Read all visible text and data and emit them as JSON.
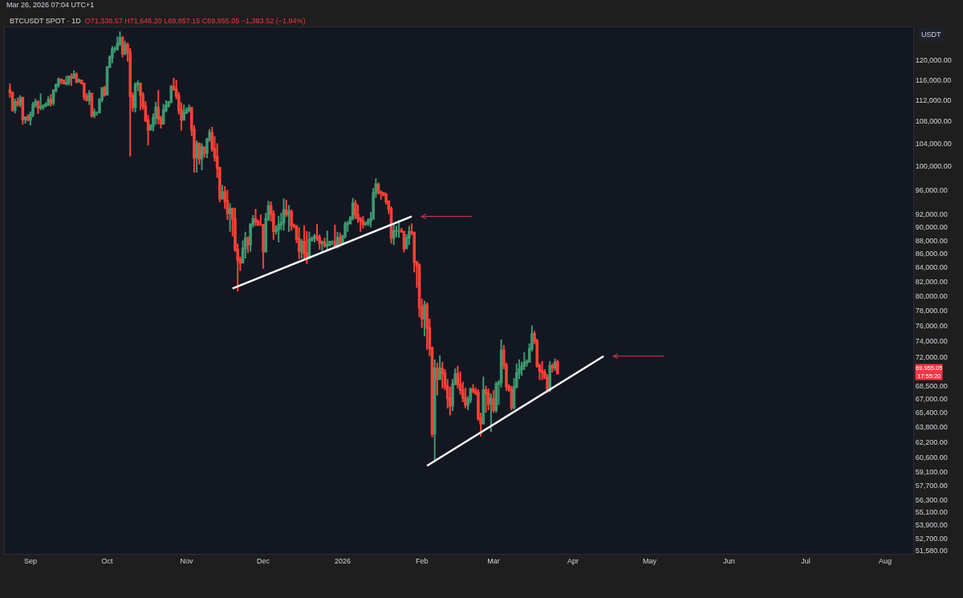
{
  "chart_data": {
    "type": "candlestick",
    "title": "BTCUSDT SPOT · 1D",
    "subtitle": "O71,338.57 H71,646.20 L69,857.15 C69,955.05 −1,383.52 (−1.94%)",
    "ylabel": "USDT",
    "annotations": [
      "Mar 26, 2026 07:04 UTC+1",
      "69,955.05 17:55:20"
    ],
    "log": "y",
    "grid": false,
    "xlim": [
      "2025-08-22",
      "2026-08-12"
    ],
    "xticks": [
      {
        "value": "2025-09-01",
        "label": "Sep"
      },
      {
        "value": "2025-10-01",
        "label": "Oct"
      },
      {
        "value": "2025-11-01",
        "label": "Nov"
      },
      {
        "value": "2025-12-01",
        "label": "Dec"
      },
      {
        "value": "2026-01-01",
        "label": "2026"
      },
      {
        "value": "2026-02-01",
        "label": "Feb"
      },
      {
        "value": "2026-03-01",
        "label": "Mar"
      },
      {
        "value": "2026-04-01",
        "label": "Apr"
      },
      {
        "value": "2026-05-01",
        "label": "May"
      },
      {
        "value": "2026-06-01",
        "label": "Jun"
      },
      {
        "value": "2026-07-01",
        "label": "Jul"
      },
      {
        "value": "2026-08-01",
        "label": "Aug"
      }
    ],
    "ylim": [
      51300,
      127000
    ],
    "yticks": [
      {
        "value": 51580,
        "label": "51,580.00"
      },
      {
        "value": 52700,
        "label": "52,700.00"
      },
      {
        "value": 53900,
        "label": "53,900.00"
      },
      {
        "value": 55100,
        "label": "55,100.00"
      },
      {
        "value": 56300,
        "label": "56,300.00"
      },
      {
        "value": 57700,
        "label": "57,700.00"
      },
      {
        "value": 59100,
        "label": "59,100.00"
      },
      {
        "value": 60600,
        "label": "60,600.00"
      },
      {
        "value": 62200,
        "label": "62,200.00"
      },
      {
        "value": 63800,
        "label": "63,800.00"
      },
      {
        "value": 65400,
        "label": "65,400.00"
      },
      {
        "value": 67000,
        "label": "67,000.00"
      },
      {
        "value": 68500,
        "label": "68,500.00"
      },
      {
        "value": 72000,
        "label": "72,000.00"
      },
      {
        "value": 74000,
        "label": "74,000.00"
      },
      {
        "value": 76000,
        "label": "76,000.00"
      },
      {
        "value": 78000,
        "label": "78,000.00"
      },
      {
        "value": 80000,
        "label": "80,000.00"
      },
      {
        "value": 82000,
        "label": "82,000.00"
      },
      {
        "value": 84000,
        "label": "84,000.00"
      },
      {
        "value": 86000,
        "label": "86,000.00"
      },
      {
        "value": 88000,
        "label": "88,000.00"
      },
      {
        "value": 90000,
        "label": "90,000.00"
      },
      {
        "value": 92000,
        "label": "92,000.00"
      },
      {
        "value": 96000,
        "label": "96,000.00"
      },
      {
        "value": 100000,
        "label": "100,000.00"
      },
      {
        "value": 104000,
        "label": "104,000.00"
      },
      {
        "value": 108000,
        "label": "108,000.00"
      },
      {
        "value": 112000,
        "label": "112,000.00"
      },
      {
        "value": 116000,
        "label": "116,000.00"
      },
      {
        "value": 120000,
        "label": "120,000.00"
      }
    ],
    "x": [
      "2025-08-24",
      "2025-08-25",
      "2025-08-26",
      "2025-08-27",
      "2025-08-28",
      "2025-08-29",
      "2025-08-30",
      "2025-08-31",
      "2025-09-01",
      "2025-09-02",
      "2025-09-03",
      "2025-09-04",
      "2025-09-05",
      "2025-09-06",
      "2025-09-07",
      "2025-09-08",
      "2025-09-09",
      "2025-09-10",
      "2025-09-11",
      "2025-09-12",
      "2025-09-13",
      "2025-09-14",
      "2025-09-15",
      "2025-09-16",
      "2025-09-17",
      "2025-09-18",
      "2025-09-19",
      "2025-09-20",
      "2025-09-21",
      "2025-09-22",
      "2025-09-23",
      "2025-09-24",
      "2025-09-25",
      "2025-09-26",
      "2025-09-27",
      "2025-09-28",
      "2025-09-29",
      "2025-09-30",
      "2025-10-01",
      "2025-10-02",
      "2025-10-03",
      "2025-10-04",
      "2025-10-05",
      "2025-10-06",
      "2025-10-07",
      "2025-10-08",
      "2025-10-09",
      "2025-10-10",
      "2025-10-11",
      "2025-10-12",
      "2025-10-13",
      "2025-10-14",
      "2025-10-15",
      "2025-10-16",
      "2025-10-17",
      "2025-10-18",
      "2025-10-19",
      "2025-10-20",
      "2025-10-21",
      "2025-10-22",
      "2025-10-23",
      "2025-10-24",
      "2025-10-25",
      "2025-10-26",
      "2025-10-27",
      "2025-10-28",
      "2025-10-29",
      "2025-10-30",
      "2025-10-31",
      "2025-11-01",
      "2025-11-02",
      "2025-11-03",
      "2025-11-04",
      "2025-11-05",
      "2025-11-06",
      "2025-11-07",
      "2025-11-08",
      "2025-11-09",
      "2025-11-10",
      "2025-11-11",
      "2025-11-12",
      "2025-11-13",
      "2025-11-14",
      "2025-11-15",
      "2025-11-16",
      "2025-11-17",
      "2025-11-18",
      "2025-11-19",
      "2025-11-20",
      "2025-11-21",
      "2025-11-22",
      "2025-11-23",
      "2025-11-24",
      "2025-11-25",
      "2025-11-26",
      "2025-11-27",
      "2025-11-28",
      "2025-11-29",
      "2025-11-30",
      "2025-12-01",
      "2025-12-02",
      "2025-12-03",
      "2025-12-04",
      "2025-12-05",
      "2025-12-06",
      "2025-12-07",
      "2025-12-08",
      "2025-12-09",
      "2025-12-10",
      "2025-12-11",
      "2025-12-12",
      "2025-12-13",
      "2025-12-14",
      "2025-12-15",
      "2025-12-16",
      "2025-12-17",
      "2025-12-18",
      "2025-12-19",
      "2025-12-20",
      "2025-12-21",
      "2025-12-22",
      "2025-12-23",
      "2025-12-24",
      "2025-12-25",
      "2025-12-26",
      "2025-12-27",
      "2025-12-28",
      "2025-12-29",
      "2025-12-30",
      "2025-12-31",
      "2026-01-01",
      "2026-01-02",
      "2026-01-03",
      "2026-01-04",
      "2026-01-05",
      "2026-01-06",
      "2026-01-07",
      "2026-01-08",
      "2026-01-09",
      "2026-01-10",
      "2026-01-11",
      "2026-01-12",
      "2026-01-13",
      "2026-01-14",
      "2026-01-15",
      "2026-01-16",
      "2026-01-17",
      "2026-01-18",
      "2026-01-19",
      "2026-01-20",
      "2026-01-21",
      "2026-01-22",
      "2026-01-23",
      "2026-01-24",
      "2026-01-25",
      "2026-01-26",
      "2026-01-27",
      "2026-01-28",
      "2026-01-29",
      "2026-01-30",
      "2026-01-31",
      "2026-02-01",
      "2026-02-02",
      "2026-02-03",
      "2026-02-04",
      "2026-02-05",
      "2026-02-06",
      "2026-02-07",
      "2026-02-08",
      "2026-02-09",
      "2026-02-10",
      "2026-02-11",
      "2026-02-12",
      "2026-02-13",
      "2026-02-14",
      "2026-02-15",
      "2026-02-16",
      "2026-02-17",
      "2026-02-18",
      "2026-02-19",
      "2026-02-20",
      "2026-02-21",
      "2026-02-22",
      "2026-02-23",
      "2026-02-24",
      "2026-02-25",
      "2026-02-26",
      "2026-02-27",
      "2026-02-28",
      "2026-03-01",
      "2026-03-02",
      "2026-03-03",
      "2026-03-04",
      "2026-03-05",
      "2026-03-06",
      "2026-03-07",
      "2026-03-08",
      "2026-03-09",
      "2026-03-10",
      "2026-03-11",
      "2026-03-12",
      "2026-03-13",
      "2026-03-14",
      "2026-03-15",
      "2026-03-16",
      "2026-03-17",
      "2026-03-18",
      "2026-03-19",
      "2026-03-20",
      "2026-03-21",
      "2026-03-22",
      "2026-03-23",
      "2026-03-24",
      "2026-03-25",
      "2026-03-26"
    ],
    "ohlc": [
      [
        114000,
        115300,
        112500,
        113500
      ],
      [
        113500,
        113700,
        109800,
        110200
      ],
      [
        110200,
        112300,
        109500,
        111700
      ],
      [
        111700,
        112500,
        110800,
        111200
      ],
      [
        111200,
        113000,
        110700,
        112500
      ],
      [
        112500,
        112700,
        107400,
        108400
      ],
      [
        108400,
        108900,
        107600,
        108800
      ],
      [
        108800,
        109300,
        108000,
        108300
      ],
      [
        108300,
        109900,
        107300,
        109300
      ],
      [
        109300,
        111700,
        108800,
        111200
      ],
      [
        111200,
        112300,
        110600,
        111700
      ],
      [
        111700,
        112000,
        109400,
        110600
      ],
      [
        110600,
        113300,
        110100,
        110700
      ],
      [
        110700,
        111200,
        110200,
        111000
      ],
      [
        111000,
        111600,
        110700,
        111200
      ],
      [
        111200,
        112800,
        110900,
        112100
      ],
      [
        112100,
        113200,
        110800,
        111500
      ],
      [
        111500,
        114200,
        111000,
        113900
      ],
      [
        113900,
        115300,
        113500,
        115000
      ],
      [
        115000,
        116500,
        114500,
        116100
      ],
      [
        116100,
        116300,
        115200,
        115900
      ],
      [
        115900,
        116100,
        115100,
        115300
      ],
      [
        115300,
        116800,
        114900,
        115400
      ],
      [
        115400,
        116900,
        114900,
        116700
      ],
      [
        116700,
        117300,
        114800,
        116400
      ],
      [
        116400,
        117900,
        116200,
        117100
      ],
      [
        117100,
        117500,
        115300,
        115700
      ],
      [
        115700,
        116300,
        115400,
        115900
      ],
      [
        115900,
        116000,
        115200,
        115300
      ],
      [
        115300,
        115400,
        112000,
        112700
      ],
      [
        112700,
        113300,
        111800,
        112000
      ],
      [
        112000,
        114000,
        111100,
        113300
      ],
      [
        113300,
        113400,
        108700,
        109100
      ],
      [
        109100,
        110400,
        108600,
        109700
      ],
      [
        109700,
        109800,
        109100,
        109700
      ],
      [
        109700,
        112400,
        109500,
        112200
      ],
      [
        112200,
        114500,
        111600,
        114400
      ],
      [
        114400,
        114800,
        112700,
        113100
      ],
      [
        113100,
        118700,
        113000,
        118600
      ],
      [
        118600,
        121000,
        118400,
        120600
      ],
      [
        120600,
        123000,
        119400,
        122300
      ],
      [
        122300,
        122900,
        121600,
        122400
      ],
      [
        122400,
        125000,
        122000,
        123500
      ],
      [
        123500,
        126100,
        123000,
        124700
      ],
      [
        124700,
        125100,
        120600,
        121400
      ],
      [
        121400,
        124100,
        121100,
        123300
      ],
      [
        123300,
        123700,
        119700,
        121700
      ],
      [
        121700,
        122500,
        101700,
        112800
      ],
      [
        112800,
        113500,
        109800,
        110700
      ],
      [
        110700,
        115500,
        109700,
        115100
      ],
      [
        115100,
        115900,
        113800,
        115300
      ],
      [
        115300,
        115400,
        110100,
        113000
      ],
      [
        113000,
        113600,
        110200,
        110800
      ],
      [
        110800,
        111800,
        107900,
        108200
      ],
      [
        108200,
        109200,
        103600,
        106500
      ],
      [
        106500,
        107500,
        106300,
        107200
      ],
      [
        107200,
        109500,
        106200,
        108700
      ],
      [
        108700,
        111700,
        107400,
        110600
      ],
      [
        110600,
        114000,
        107500,
        108500
      ],
      [
        108500,
        109100,
        106700,
        107600
      ],
      [
        107600,
        111300,
        107400,
        110100
      ],
      [
        110100,
        112000,
        109700,
        111000
      ],
      [
        111000,
        111800,
        110600,
        111700
      ],
      [
        111700,
        115000,
        111400,
        114600
      ],
      [
        114600,
        116400,
        113900,
        114100
      ],
      [
        114100,
        116000,
        112200,
        112900
      ],
      [
        112900,
        113600,
        109300,
        110100
      ],
      [
        110100,
        111600,
        106300,
        108300
      ],
      [
        108300,
        111200,
        108300,
        109600
      ],
      [
        109600,
        110600,
        109400,
        110100
      ],
      [
        110100,
        111200,
        109700,
        110500
      ],
      [
        110500,
        110800,
        105300,
        106500
      ],
      [
        106500,
        107300,
        98900,
        101500
      ],
      [
        101500,
        104500,
        98900,
        103900
      ],
      [
        103900,
        104200,
        100300,
        101300
      ],
      [
        101300,
        104000,
        99300,
        103300
      ],
      [
        103300,
        103400,
        101500,
        102300
      ],
      [
        102300,
        105000,
        101400,
        104700
      ],
      [
        104700,
        106600,
        104300,
        105900
      ],
      [
        105900,
        107000,
        102500,
        103000
      ],
      [
        103000,
        105300,
        100800,
        101600
      ],
      [
        101600,
        104000,
        98000,
        99700
      ],
      [
        99700,
        99900,
        94000,
        94600
      ],
      [
        94600,
        96800,
        94400,
        95600
      ],
      [
        95600,
        96600,
        92900,
        94200
      ],
      [
        94200,
        96000,
        91200,
        92200
      ],
      [
        92200,
        93800,
        89300,
        92900
      ],
      [
        92900,
        93100,
        88600,
        91300
      ],
      [
        91300,
        93100,
        86300,
        86600
      ],
      [
        86600,
        87500,
        80600,
        85100
      ],
      [
        85100,
        85600,
        83500,
        84700
      ],
      [
        84700,
        88000,
        84700,
        86800
      ],
      [
        86800,
        89300,
        85300,
        88300
      ],
      [
        88300,
        88600,
        86100,
        87400
      ],
      [
        87400,
        90600,
        86300,
        90500
      ],
      [
        90500,
        91900,
        90000,
        91300
      ],
      [
        91300,
        92900,
        90200,
        90900
      ],
      [
        90900,
        91200,
        90200,
        90400
      ],
      [
        90400,
        92000,
        90200,
        90400
      ],
      [
        90400,
        90400,
        83800,
        86300
      ],
      [
        86300,
        92300,
        86200,
        91300
      ],
      [
        91300,
        94200,
        91000,
        93400
      ],
      [
        93400,
        94100,
        90900,
        92100
      ],
      [
        92100,
        92700,
        88100,
        89400
      ],
      [
        89400,
        90300,
        88900,
        89700
      ],
      [
        89700,
        91800,
        87700,
        90400
      ],
      [
        90400,
        92300,
        89600,
        90700
      ],
      [
        90700,
        94600,
        89500,
        92700
      ],
      [
        92700,
        94400,
        91600,
        92000
      ],
      [
        92000,
        93500,
        89300,
        92500
      ],
      [
        92500,
        92800,
        89500,
        90300
      ],
      [
        90300,
        90600,
        89800,
        90200
      ],
      [
        90200,
        90300,
        87600,
        88200
      ],
      [
        88200,
        90000,
        85200,
        86400
      ],
      [
        86400,
        88200,
        85300,
        87800
      ],
      [
        87800,
        90300,
        85300,
        86100
      ],
      [
        86100,
        89400,
        84500,
        85500
      ],
      [
        85500,
        89300,
        85200,
        88100
      ],
      [
        88100,
        88600,
        87800,
        88300
      ],
      [
        88300,
        89000,
        87700,
        88600
      ],
      [
        88600,
        90500,
        87900,
        88400
      ],
      [
        88400,
        88900,
        86600,
        87600
      ],
      [
        87600,
        88000,
        86400,
        87700
      ],
      [
        87700,
        88400,
        86900,
        87200
      ],
      [
        87200,
        89500,
        86600,
        87300
      ],
      [
        87300,
        87900,
        87100,
        87800
      ],
      [
        87800,
        88000,
        87300,
        87800
      ],
      [
        87800,
        90400,
        86800,
        87100
      ],
      [
        87100,
        89300,
        86800,
        88400
      ],
      [
        88400,
        89200,
        87000,
        87600
      ],
      [
        87600,
        88800,
        87400,
        88700
      ],
      [
        88700,
        90900,
        88300,
        90500
      ],
      [
        90500,
        91000,
        89300,
        90600
      ],
      [
        90600,
        91800,
        90500,
        91400
      ],
      [
        91400,
        94700,
        91100,
        93800
      ],
      [
        93800,
        94400,
        91300,
        92000
      ],
      [
        92000,
        93600,
        90700,
        91300
      ],
      [
        91300,
        91600,
        89300,
        91000
      ],
      [
        91000,
        91800,
        89800,
        90500
      ],
      [
        90500,
        90900,
        90200,
        90600
      ],
      [
        90600,
        91400,
        90200,
        91000
      ],
      [
        91000,
        92400,
        90000,
        91300
      ],
      [
        91300,
        96300,
        91200,
        95500
      ],
      [
        95500,
        97900,
        94700,
        96900
      ],
      [
        96900,
        97200,
        95200,
        95600
      ],
      [
        95600,
        95900,
        94400,
        95500
      ],
      [
        95500,
        95600,
        94900,
        95200
      ],
      [
        95200,
        95500,
        93600,
        94100
      ],
      [
        94100,
        94300,
        92100,
        92900
      ],
      [
        92900,
        93300,
        87500,
        88400
      ],
      [
        88400,
        90500,
        87300,
        89400
      ],
      [
        89400,
        90300,
        88500,
        89500
      ],
      [
        89500,
        91100,
        88400,
        89500
      ],
      [
        89500,
        89900,
        89200,
        89300
      ],
      [
        89300,
        89300,
        86200,
        86800
      ],
      [
        86800,
        88900,
        86700,
        88400
      ],
      [
        88400,
        90200,
        87300,
        89300
      ],
      [
        89300,
        90600,
        88800,
        89200
      ],
      [
        89200,
        89300,
        83300,
        84800
      ],
      [
        84800,
        84900,
        81100,
        84300
      ],
      [
        84300,
        84600,
        77100,
        78400
      ],
      [
        78400,
        79600,
        75700,
        76900
      ],
      [
        76900,
        79300,
        74600,
        78700
      ],
      [
        78700,
        79100,
        72900,
        75700
      ],
      [
        75700,
        76900,
        72100,
        73100
      ],
      [
        73100,
        73300,
        62700,
        63100
      ],
      [
        63100,
        71700,
        60300,
        70600
      ],
      [
        70600,
        71300,
        67400,
        69300
      ],
      [
        69300,
        72200,
        69200,
        70600
      ],
      [
        70600,
        71400,
        68200,
        70000
      ],
      [
        70000,
        70500,
        68000,
        68400
      ],
      [
        68400,
        69300,
        65900,
        67100
      ],
      [
        67100,
        68400,
        65100,
        66200
      ],
      [
        66200,
        69300,
        65600,
        68700
      ],
      [
        68700,
        70600,
        68600,
        69900
      ],
      [
        69900,
        70900,
        68200,
        68700
      ],
      [
        68700,
        70200,
        67500,
        68000
      ],
      [
        68000,
        69000,
        66600,
        67100
      ],
      [
        67100,
        68300,
        65900,
        66300
      ],
      [
        66300,
        67300,
        65700,
        66900
      ],
      [
        66900,
        68300,
        66500,
        68100
      ],
      [
        68100,
        68700,
        67600,
        67900
      ],
      [
        67900,
        68300,
        67400,
        67700
      ],
      [
        67700,
        68100,
        64500,
        64800
      ],
      [
        64800,
        65400,
        62800,
        64200
      ],
      [
        64200,
        69600,
        64100,
        68000
      ],
      [
        68000,
        68500,
        65400,
        67600
      ],
      [
        67600,
        68200,
        65700,
        66400
      ],
      [
        66400,
        67600,
        63300,
        67000
      ],
      [
        67000,
        68000,
        65400,
        65700
      ],
      [
        65700,
        69000,
        65400,
        68700
      ],
      [
        68700,
        69200,
        66300,
        68900
      ],
      [
        68900,
        74200,
        68300,
        72800
      ],
      [
        72800,
        73500,
        70500,
        71000
      ],
      [
        71000,
        71300,
        67900,
        68400
      ],
      [
        68400,
        68700,
        67800,
        68100
      ],
      [
        68100,
        68500,
        65700,
        66000
      ],
      [
        66000,
        69400,
        65800,
        68400
      ],
      [
        68400,
        71200,
        68200,
        70000
      ],
      [
        70000,
        71700,
        69300,
        70500
      ],
      [
        70500,
        71400,
        69700,
        70900
      ],
      [
        70900,
        72600,
        70400,
        71300
      ],
      [
        71300,
        71700,
        70800,
        71400
      ],
      [
        71400,
        73700,
        71300,
        73000
      ],
      [
        73000,
        76000,
        72700,
        74900
      ],
      [
        74900,
        75300,
        73600,
        74000
      ],
      [
        74000,
        74300,
        70700,
        70900
      ],
      [
        70900,
        71200,
        69200,
        70300
      ],
      [
        70300,
        71500,
        69200,
        70100
      ],
      [
        70100,
        70500,
        69300,
        69500
      ],
      [
        69500,
        69900,
        67700,
        68000
      ],
      [
        68000,
        71500,
        67800,
        70900
      ],
      [
        70900,
        71200,
        70100,
        70700
      ],
      [
        70700,
        71800,
        70300,
        71338.57
      ],
      [
        71338.57,
        71646.2,
        69857.15,
        69955.05
      ]
    ],
    "series": [
      {
        "type": "line",
        "color": "#ffffff",
        "x": [
          "2025-11-19",
          "2026-01-28"
        ],
        "values": [
          81000,
          91700
        ]
      },
      {
        "type": "line",
        "color": "#ffffff",
        "x": [
          "2026-02-03",
          "2026-04-13"
        ],
        "values": [
          59700,
          72100
        ]
      }
    ]
  }
}
